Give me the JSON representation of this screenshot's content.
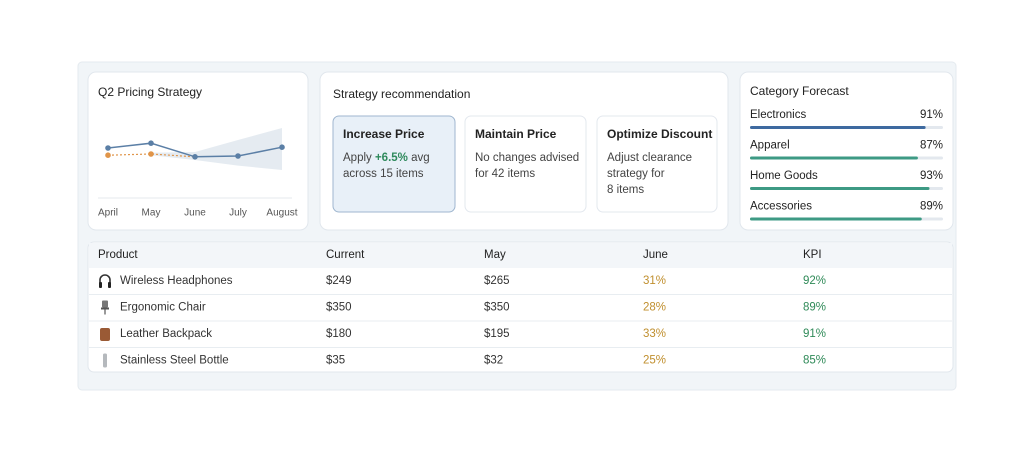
{
  "pricing": {
    "title": "Q2 Pricing Strategy",
    "x": [
      "April",
      "May",
      "June",
      "July",
      "August"
    ],
    "ylim": [
      0,
      10
    ],
    "series": [
      {
        "color": "#5b7fa6",
        "values": [
          6.5,
          7.1,
          5.4,
          5.5,
          6.6
        ]
      },
      {
        "color": "#e0954a",
        "values": [
          5.6,
          5.75,
          5.4,
          null,
          null
        ]
      }
    ],
    "band": {
      "color": "#dfe6ee",
      "lower": [
        null,
        5.6,
        5.0,
        4.3,
        3.75
      ],
      "upper": [
        null,
        5.9,
        6.0,
        7.5,
        9.0
      ]
    }
  },
  "recommendation": {
    "title": "Strategy recommendation",
    "options": [
      {
        "title": "Increase Price",
        "lines": [
          [
            "Apply ",
            "+6.5%",
            " avg"
          ],
          [
            "across 15 items"
          ]
        ]
      },
      {
        "title": "Maintain Price",
        "lines": [
          [
            "No changes advised"
          ],
          [
            "for 42 items"
          ]
        ]
      },
      {
        "title": "Optimize Discount",
        "lines": [
          [
            "Adjust clearance"
          ],
          [
            "strategy for"
          ],
          [
            "8 items"
          ]
        ]
      }
    ]
  },
  "forecast": {
    "title": "Category Forecast",
    "categories": [
      "Electronics",
      "Apparel",
      "Home Goods",
      "Accessories"
    ],
    "values": [
      91,
      87,
      93,
      89
    ],
    "value_labels": [
      "91%",
      "87%",
      "93%",
      "89%"
    ],
    "colors": [
      "#3e6aa0",
      "#3d9a84",
      "#3d9a84",
      "#3d9a84"
    ],
    "xlim": [
      0,
      100
    ]
  },
  "table": {
    "headers": [
      "Product",
      "Current",
      "May",
      "June",
      "KPI"
    ],
    "rows": [
      [
        "Wireless Headphones",
        "$249",
        "$265",
        "31%",
        "92%"
      ],
      [
        "Ergonomic Chair",
        "$350",
        "$350",
        "28%",
        "89%"
      ],
      [
        "Leather Backpack",
        "$180",
        "$195",
        "33%",
        "91%"
      ],
      [
        "Stainless Steel Bottle",
        "$35",
        "$32",
        "25%",
        "85%"
      ]
    ]
  }
}
